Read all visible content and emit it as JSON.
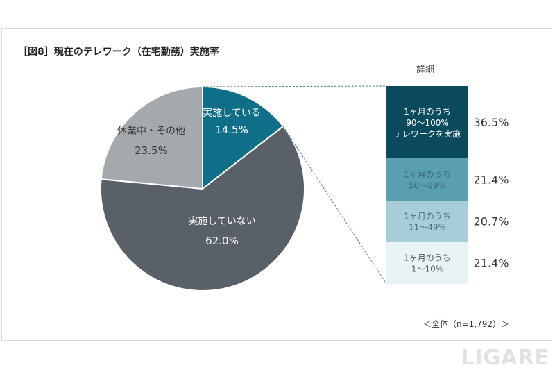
{
  "chart_data": [
    {
      "type": "pie",
      "title": "［図8］現在のテレワーク（在宅勤務）実施率",
      "slices": [
        {
          "label": "実施している",
          "value": 14.5,
          "display": "14.5%",
          "color": "#0f6e88"
        },
        {
          "label": "実施していない",
          "value": 62.0,
          "display": "62.0%",
          "color": "#5a6068"
        },
        {
          "label": "休業中・その他",
          "value": 23.5,
          "display": "23.5%",
          "color": "#a4a9ad"
        }
      ]
    },
    {
      "type": "bar",
      "stacked": true,
      "title": "詳細",
      "segments": [
        {
          "label": "1ヶ月のうち\n90～100%\nテレワークを実施",
          "lines": [
            "1ヶ月のうち",
            "90～100%",
            "テレワークを実施"
          ],
          "value": 36.5,
          "display": "36.5%",
          "color": "#0b4a5c",
          "text_color": "#ffffff"
        },
        {
          "label": "1ヶ月のうち\n50～89%",
          "lines": [
            "1ヶ月のうち",
            "50～89%"
          ],
          "value": 21.4,
          "display": "21.4%",
          "color": "#5a9fb1",
          "text_color": "#3b6674"
        },
        {
          "label": "1ヶ月のうち\n11～49%",
          "lines": [
            "1ヶ月のうち",
            "11～49%"
          ],
          "value": 20.7,
          "display": "20.7%",
          "color": "#a6cdd8",
          "text_color": "#4a6f7a"
        },
        {
          "label": "1ヶ月のうち\n1～10%",
          "lines": [
            "1ヶ月のうち",
            "1～10%"
          ],
          "value": 21.4,
          "display": "21.4%",
          "color": "#e9f3f6",
          "text_color": "#555"
        }
      ]
    }
  ],
  "note": "＜全体（n=1,792）＞",
  "watermark": "LIGARE"
}
